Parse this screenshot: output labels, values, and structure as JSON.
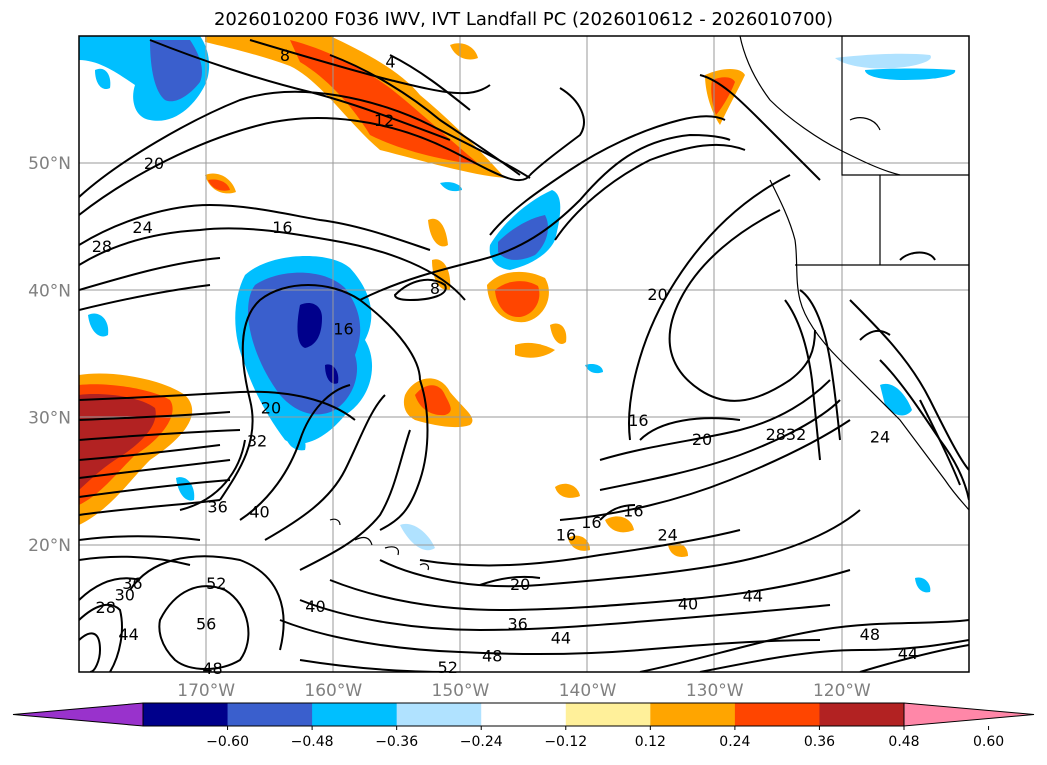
{
  "title": "2026010200 F036 IWV, IVT Landfall PC (2026010612 - 2026010700)",
  "map": {
    "projection": "plate-carree",
    "lon_range": [
      -180,
      -110
    ],
    "lat_range": [
      10,
      60
    ],
    "gridlines": true,
    "lat_ticks": [
      {
        "value": 50,
        "label": "50°N"
      },
      {
        "value": 40,
        "label": "40°N"
      },
      {
        "value": 30,
        "label": "30°N"
      },
      {
        "value": 20,
        "label": "20°N"
      }
    ],
    "lon_ticks": [
      {
        "value": -170,
        "label": "170°W"
      },
      {
        "value": -160,
        "label": "160°W"
      },
      {
        "value": -150,
        "label": "150°W"
      },
      {
        "value": -140,
        "label": "140°W"
      },
      {
        "value": -130,
        "label": "130°W"
      },
      {
        "value": -120,
        "label": "120°W"
      }
    ],
    "contour_labels": [
      {
        "text": "8",
        "lon": -163.8,
        "lat": 58.5
      },
      {
        "text": "4",
        "lon": -155.5,
        "lat": 58.0
      },
      {
        "text": "12",
        "lon": -156.0,
        "lat": 53.4
      },
      {
        "text": "20",
        "lon": -174.1,
        "lat": 50.0
      },
      {
        "text": "24",
        "lon": -175.0,
        "lat": 45.0
      },
      {
        "text": "28",
        "lon": -178.2,
        "lat": 43.5
      },
      {
        "text": "16",
        "lon": -164.0,
        "lat": 45.0
      },
      {
        "text": "8",
        "lon": -152.0,
        "lat": 40.2
      },
      {
        "text": "16",
        "lon": -159.2,
        "lat": 37.0
      },
      {
        "text": "20",
        "lon": -164.9,
        "lat": 30.8
      },
      {
        "text": "32",
        "lon": -166.0,
        "lat": 28.2
      },
      {
        "text": "20",
        "lon": -134.5,
        "lat": 39.7
      },
      {
        "text": "16",
        "lon": -136.0,
        "lat": 29.8
      },
      {
        "text": "20",
        "lon": -131.0,
        "lat": 28.3
      },
      {
        "text": "28",
        "lon": -125.2,
        "lat": 28.7
      },
      {
        "text": "32",
        "lon": -123.6,
        "lat": 28.7
      },
      {
        "text": "24",
        "lon": -117.0,
        "lat": 28.5
      },
      {
        "text": "36",
        "lon": -169.1,
        "lat": 23.0
      },
      {
        "text": "40",
        "lon": -165.8,
        "lat": 22.6
      },
      {
        "text": "16",
        "lon": -141.7,
        "lat": 20.8
      },
      {
        "text": "16",
        "lon": -139.7,
        "lat": 21.8
      },
      {
        "text": "16",
        "lon": -136.4,
        "lat": 22.7
      },
      {
        "text": "24",
        "lon": -133.7,
        "lat": 20.8
      },
      {
        "text": "20",
        "lon": -145.3,
        "lat": 16.9
      },
      {
        "text": "36",
        "lon": -145.5,
        "lat": 13.8
      },
      {
        "text": "44",
        "lon": -142.1,
        "lat": 12.7
      },
      {
        "text": "48",
        "lon": -147.5,
        "lat": 11.3
      },
      {
        "text": "52",
        "lon": -151.0,
        "lat": 10.4
      },
      {
        "text": "40",
        "lon": -132.1,
        "lat": 15.4
      },
      {
        "text": "44",
        "lon": -127.0,
        "lat": 16.0
      },
      {
        "text": "48",
        "lon": -117.8,
        "lat": 13.0
      },
      {
        "text": "44",
        "lon": -114.8,
        "lat": 11.5
      },
      {
        "text": "52",
        "lon": -169.2,
        "lat": 17.0
      },
      {
        "text": "56",
        "lon": -170.0,
        "lat": 13.8
      },
      {
        "text": "48",
        "lon": -169.5,
        "lat": 10.3
      },
      {
        "text": "40",
        "lon": -161.4,
        "lat": 15.2
      },
      {
        "text": "36",
        "lon": -175.8,
        "lat": 17.0
      },
      {
        "text": "28",
        "lon": -177.9,
        "lat": 15.1
      },
      {
        "text": "30",
        "lon": -176.4,
        "lat": 16.1
      },
      {
        "text": "44",
        "lon": -176.1,
        "lat": 13.0
      }
    ]
  },
  "colorbar": {
    "ticks": [
      "−0.60",
      "−0.48",
      "−0.36",
      "−0.24",
      "−0.12",
      "0.12",
      "0.24",
      "0.36",
      "0.48",
      "0.60"
    ],
    "colors": [
      "#9932cc",
      "#00008b",
      "#3a5fcd",
      "#00bfff",
      "#b0e2ff",
      "#ffffff",
      "#fff09a",
      "#ffa500",
      "#ff4500",
      "#b22222",
      "#ff87a8"
    ],
    "extend": "both"
  }
}
